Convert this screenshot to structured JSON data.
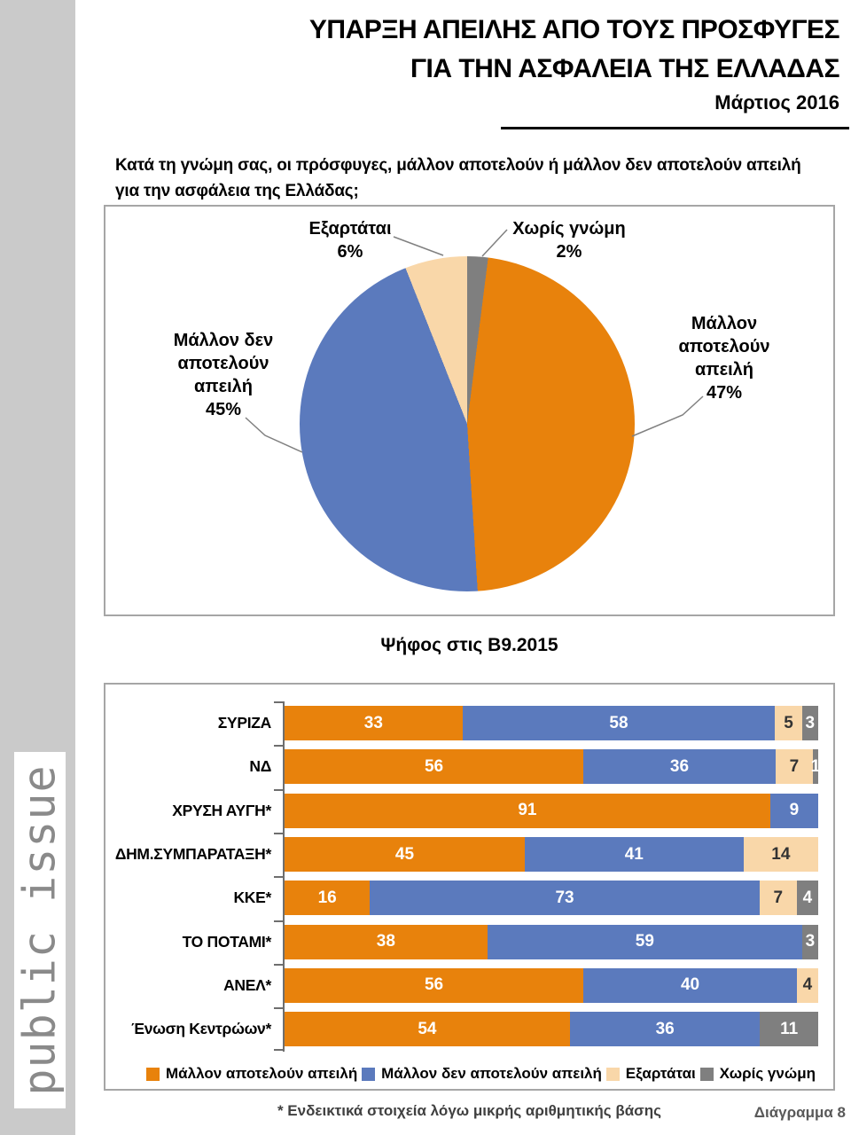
{
  "logo": {
    "text": "public issue"
  },
  "header": {
    "title_line1": "ΥΠΑΡΞΗ ΑΠΕΙΛΗΣ ΑΠΟ ΤΟΥΣ ΠΡΟΣΦΥΓΕΣ",
    "title_line2": "ΓΙΑ ΤΗΝ ΑΣΦΑΛΕΙΑ ΤΗΣ ΕΛΛΑΔΑΣ",
    "date": "Μάρτιος 2016"
  },
  "question": {
    "line1": "Κατά τη γνώμη σας, οι πρόσφυγες, μάλλον αποτελούν ή μάλλον δεν αποτελούν απειλή",
    "line2": "για την ασφάλεια της Ελλάδας;"
  },
  "colors": {
    "orange": "#E8820C",
    "blue": "#5B7ABD",
    "peach": "#F9D7A9",
    "gray": "#7F7F7F",
    "panel_border": "#A6A6A6",
    "axis": "#6E6E6E",
    "sidebar_band": "#CACACA",
    "logo_text": "#8A8A8A",
    "dark_value_text": "#333333"
  },
  "pie_callouts": {
    "top_left": {
      "lines": [
        "Εξαρτάται",
        "6%"
      ]
    },
    "top_right": {
      "lines": [
        "Χωρίς γνώμη",
        "2%"
      ]
    },
    "left": {
      "lines": [
        "Μάλλον δεν",
        "αποτελούν",
        "απειλή",
        "45%"
      ]
    },
    "right": {
      "lines": [
        "Μάλλον",
        "αποτελούν",
        "απειλή",
        "47%"
      ]
    }
  },
  "subtitle": "Ψήφος στις Β9.2015",
  "legend": [
    {
      "label": "Μάλλον αποτελούν απειλή",
      "color_key": "orange"
    },
    {
      "label": "Μάλλον δεν αποτελούν απειλή",
      "color_key": "blue"
    },
    {
      "label": "Εξαρτάται",
      "color_key": "peach"
    },
    {
      "label": "Χωρίς γνώμη",
      "color_key": "gray"
    }
  ],
  "footer": {
    "note": "* Ενδεικτικά στοιχεία λόγω μικρής αριθμητικής βάσης",
    "diagram": "Διάγραμμα 8"
  },
  "chart_data": [
    {
      "type": "pie",
      "start_angle_deg": 0,
      "direction": "clockwise",
      "slices": [
        {
          "label": "Χωρίς γνώμη",
          "value": 2,
          "color_key": "gray"
        },
        {
          "label": "Μάλλον αποτελούν απειλή",
          "value": 47,
          "color_key": "orange"
        },
        {
          "label": "Μάλλον δεν αποτελούν απειλή",
          "value": 45,
          "color_key": "blue"
        },
        {
          "label": "Εξαρτάται",
          "value": 6,
          "color_key": "peach"
        }
      ]
    },
    {
      "type": "bar",
      "stacked": true,
      "orientation": "horizontal",
      "xlim": [
        0,
        100
      ],
      "categories": [
        "ΣΥΡΙΖΑ",
        "ΝΔ",
        "ΧΡΥΣΗ ΑΥΓΗ*",
        "ΔΗΜ.ΣΥΜΠΑΡΑΤΑΞΗ*",
        "ΚΚΕ*",
        "ΤΟ ΠΟΤΑΜΙ*",
        "ΑΝΕΛ*",
        "Ένωση Κεντρώων*"
      ],
      "series": [
        {
          "name": "Μάλλον αποτελούν απειλή",
          "color_key": "orange",
          "values": [
            33,
            56,
            91,
            45,
            16,
            38,
            56,
            54
          ]
        },
        {
          "name": "Μάλλον δεν αποτελούν απειλή",
          "color_key": "blue",
          "values": [
            58,
            36,
            9,
            41,
            73,
            59,
            40,
            36
          ]
        },
        {
          "name": "Εξαρτάται",
          "color_key": "peach",
          "values": [
            5,
            7,
            0,
            14,
            7,
            0,
            4,
            0
          ]
        },
        {
          "name": "Χωρίς γνώμη",
          "color_key": "gray",
          "values": [
            3,
            1,
            0,
            0,
            4,
            3,
            0,
            11
          ]
        }
      ]
    }
  ]
}
